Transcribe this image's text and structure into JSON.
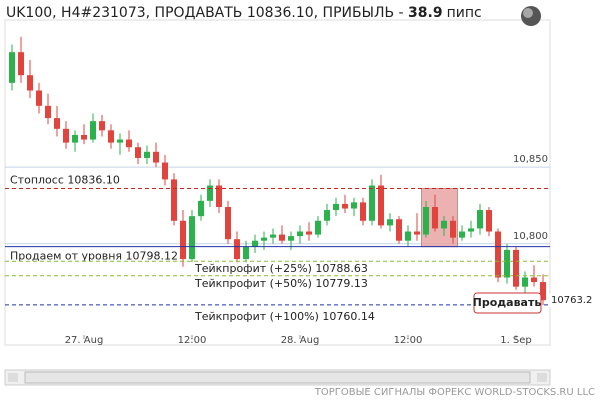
{
  "chart_data": {
    "type": "candlestick",
    "title": "UK100, H4#231073, ПРОДАВАТЬ 10836.10, ПРИБЫЛЬ - ",
    "profit": 38.9,
    "profit_unit": "пипс",
    "x": [
      null,
      null,
      null,
      null,
      null,
      null,
      null,
      null,
      "27. Aug",
      null,
      null,
      null,
      null,
      null,
      null,
      null,
      null,
      null,
      null,
      null,
      "12:00",
      null,
      null,
      null,
      null,
      null,
      null,
      null,
      null,
      null,
      null,
      null,
      "28. Aug",
      null,
      null,
      null,
      null,
      null,
      null,
      null,
      null,
      null,
      null,
      null,
      "12:00",
      null,
      null,
      null,
      null,
      null,
      null,
      null,
      null,
      null,
      null,
      null,
      "1. Sep",
      null,
      null,
      null
    ],
    "open": [
      10905,
      10925,
      10910,
      10900,
      10890,
      10882,
      10875,
      10866,
      10871,
      10868,
      10880,
      10874,
      10866,
      10868,
      10863,
      10856,
      10860,
      10853,
      10842,
      10815,
      10790,
      10818,
      10828,
      10838,
      10824,
      10803,
      10790,
      10798,
      10802,
      10804,
      10806,
      10802,
      10805,
      10808,
      10806,
      10815,
      10822,
      10826,
      10823,
      10827,
      10815,
      10838,
      10812,
      10816,
      10802,
      10808,
      10806,
      10824,
      10810,
      10815,
      10804,
      10808,
      10810,
      10822,
      10808,
      10778,
      10796,
      10772,
      10778,
      10775
    ],
    "high": [
      10930,
      10935,
      10920,
      10905,
      10898,
      10890,
      10880,
      10874,
      10878,
      10885,
      10884,
      10878,
      10872,
      10874,
      10866,
      10864,
      10866,
      10858,
      10846,
      10822,
      10822,
      10832,
      10842,
      10842,
      10828,
      10808,
      10802,
      10806,
      10808,
      10810,
      10812,
      10808,
      10812,
      10814,
      10818,
      10826,
      10830,
      10832,
      10830,
      10830,
      10842,
      10845,
      10820,
      10818,
      10812,
      10820,
      10828,
      10832,
      10818,
      10818,
      10812,
      10815,
      10826,
      10824,
      10810,
      10800,
      10798,
      10782,
      10786,
      10780
    ],
    "low": [
      10900,
      10905,
      10895,
      10885,
      10878,
      10870,
      10862,
      10860,
      10865,
      10866,
      10870,
      10862,
      10858,
      10860,
      10852,
      10852,
      10850,
      10838,
      10812,
      10785,
      10788,
      10815,
      10824,
      10820,
      10800,
      10780,
      10786,
      10794,
      10796,
      10800,
      10800,
      10796,
      10800,
      10802,
      10804,
      10812,
      10818,
      10820,
      10818,
      10812,
      10812,
      10810,
      10808,
      10800,
      10798,
      10802,
      10804,
      10808,
      10805,
      10800,
      10802,
      10804,
      10806,
      10805,
      10775,
      10774,
      10770,
      10768,
      10772,
      10760
    ],
    "close": [
      10925,
      10910,
      10900,
      10890,
      10882,
      10875,
      10866,
      10871,
      10868,
      10880,
      10874,
      10866,
      10868,
      10863,
      10856,
      10860,
      10853,
      10842,
      10815,
      10790,
      10818,
      10828,
      10838,
      10824,
      10803,
      10790,
      10798,
      10802,
      10804,
      10806,
      10802,
      10805,
      10808,
      10806,
      10815,
      10822,
      10826,
      10823,
      10827,
      10815,
      10838,
      10812,
      10816,
      10802,
      10808,
      10806,
      10824,
      10810,
      10815,
      10804,
      10808,
      10810,
      10822,
      10808,
      10778,
      10796,
      10772,
      10778,
      10775,
      10763.2
    ],
    "up_color": "#2bb24c",
    "down_color": "#e0443c",
    "ylim": [
      10747,
      10946
    ],
    "yticks": [
      {
        "value": 10850,
        "label": "10,850"
      },
      {
        "value": 10800,
        "label": "10,800"
      }
    ],
    "grid": true,
    "levels": [
      {
        "label": "Стоплосс 10836.10",
        "value": 10836.1,
        "color": "#cc2222",
        "dash": true
      },
      {
        "label": "Продаем от уровня 10798.12",
        "value": 10798.12,
        "color": "#2233aa",
        "dash": false
      },
      {
        "label": "Тейкпрофит (+25%) 10788.63",
        "value": 10788.63,
        "color": "#88bb33",
        "dash": true
      },
      {
        "label": "Тейкпрофит (+50%) 10779.13",
        "value": 10779.13,
        "color": "#88bb33",
        "dash": true
      },
      {
        "label": "Тейкпрофит (+100%) 10760.14",
        "value": 10760.14,
        "color": "#2233aa",
        "dash": true
      }
    ],
    "last_price_label": "10763.2",
    "button": "Продавать",
    "footer": "ТОРГОВЫЕ СИГНАЛЫ ФОРЕКС WORLD-STOCKS.RU LLC"
  }
}
